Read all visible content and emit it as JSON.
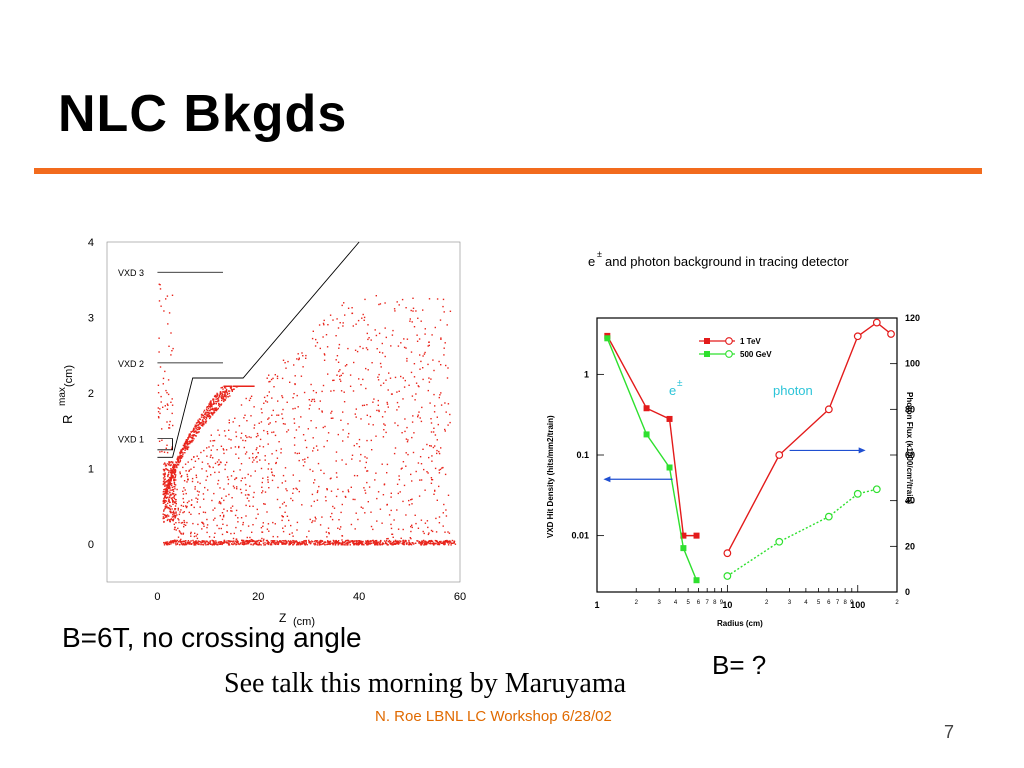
{
  "slide": {
    "title": "NLC Bkgds",
    "caption_left": "B=6T, no crossing angle",
    "caption_center": "See talk this morning by Maruyama",
    "caption_right": "B= ?",
    "footer": "N. Roe LBNL LC Workshop 6/28/02",
    "page_number": "7",
    "accent_color": "#f26b1d",
    "footer_color": "#e06a00"
  },
  "chart_data": [
    {
      "type": "scatter",
      "title": "",
      "xlabel": "Z (cm)",
      "ylabel": "R^max (cm)",
      "ylabel_main": "R",
      "ylabel_sup": "max",
      "ylabel_unit": "(cm)",
      "xlabel_main": "Z",
      "xlabel_unit": "(cm)",
      "xlim": [
        -10,
        60
      ],
      "ylim": [
        -0.5,
        4
      ],
      "xticks": [
        "0",
        "20",
        "40",
        "60"
      ],
      "yticks": [
        "0",
        "1",
        "2",
        "3",
        "4"
      ],
      "point_color": "#e8241b",
      "annotations": [
        {
          "label": "VXD 3",
          "y": 3.6,
          "x_start": 0,
          "x_end": 13
        },
        {
          "label": "VXD 2",
          "y": 2.4,
          "x_start": 0,
          "x_end": 13
        },
        {
          "label": "VXD 1",
          "y": 1.4,
          "x_start": 0,
          "x_end": 3
        }
      ],
      "mask_boundary": [
        [
          0,
          1.15
        ],
        [
          3,
          1.15
        ],
        [
          7,
          2.2
        ],
        [
          17,
          2.2
        ],
        [
          40,
          4.0
        ]
      ],
      "mask_inner_steps": [
        [
          0,
          1.25
        ],
        [
          3,
          1.25
        ],
        [
          3,
          1.4
        ]
      ]
    },
    {
      "type": "line",
      "title": "e± and photon background  in tracing detector",
      "title_main": "e",
      "title_sup": "±",
      "title_rest": " and photon background  in tracing detector",
      "xlabel": "Radius (cm)",
      "ylabel_left": "VXD Hit Density (hits/mm2/train)",
      "ylabel_right": "Photon Flux (k1000/cm²/train)",
      "x_scale": "log",
      "y_left_scale": "log",
      "xlim": [
        1,
        200
      ],
      "ylim_left": [
        0.002,
        5
      ],
      "ylim_right": [
        0,
        120
      ],
      "xticks_major": [
        "1",
        "10",
        "100"
      ],
      "yticks_left": [
        "1",
        "0.1",
        "0.01"
      ],
      "yticks_right": [
        "0",
        "20",
        "40",
        "60",
        "80",
        "100",
        "120"
      ],
      "region_labels": [
        {
          "text": "e±",
          "text_main": "e",
          "text_sup": "±",
          "color": "#2cc4d8"
        },
        {
          "text": "photon",
          "color": "#2cc4d8"
        }
      ],
      "arrow_color": "#1f4fd1",
      "series": [
        {
          "name": "1 TeV",
          "color": "#e31b1b",
          "axis": "left",
          "marker": "filled-square",
          "x": [
            1.2,
            2.4,
            3.6,
            4.6,
            5.8
          ],
          "y": [
            3.0,
            0.38,
            0.28,
            0.01,
            0.01
          ]
        },
        {
          "name": "500 GeV",
          "color": "#2ee02e",
          "axis": "left",
          "marker": "filled-square",
          "x": [
            1.2,
            2.4,
            3.6,
            4.6,
            5.8
          ],
          "y": [
            2.8,
            0.18,
            0.07,
            0.007,
            0.0028
          ]
        },
        {
          "name": "1 TeV",
          "color": "#e31b1b",
          "axis": "right",
          "marker": "open-circle",
          "style": "solid",
          "x": [
            10,
            25,
            60,
            100,
            140,
            180
          ],
          "y": [
            17,
            60,
            80,
            112,
            118,
            113
          ]
        },
        {
          "name": "500 GeV",
          "color": "#2ee02e",
          "axis": "right",
          "marker": "open-circle",
          "style": "dotted",
          "x": [
            10,
            25,
            60,
            100,
            140
          ],
          "y": [
            7,
            22,
            33,
            43,
            45
          ]
        }
      ],
      "legend": [
        {
          "label": "1 TeV",
          "color": "#e31b1b"
        },
        {
          "label": "500 GeV",
          "color": "#2ee02e"
        }
      ],
      "legend_position": "top-left"
    }
  ]
}
